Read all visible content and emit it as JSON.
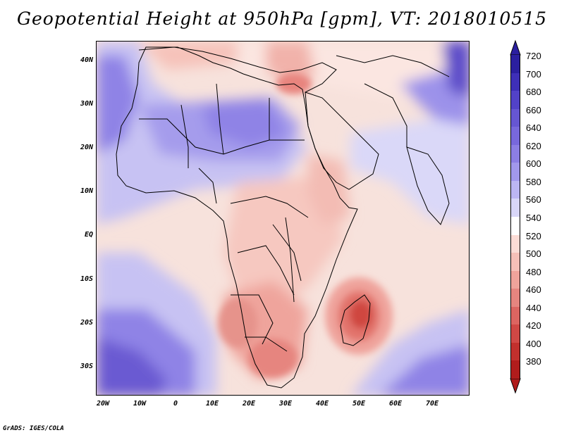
{
  "title": "Geopotential Height at 950hPa [gpm], VT: 2018010515",
  "credit": "GrADS: IGES/COLA",
  "map": {
    "lat_labels": [
      "40N",
      "30N",
      "20N",
      "10N",
      "EQ",
      "10S",
      "20S",
      "30S"
    ],
    "lon_labels": [
      "20W",
      "10W",
      "0",
      "10E",
      "20E",
      "30E",
      "40E",
      "50E",
      "60E",
      "70E"
    ]
  },
  "colorbar": {
    "labels": [
      "720",
      "700",
      "680",
      "660",
      "640",
      "620",
      "600",
      "580",
      "560",
      "540",
      "520",
      "500",
      "480",
      "460",
      "440",
      "420",
      "400",
      "380"
    ],
    "colors": [
      "#2b1fa0",
      "#3e2fb8",
      "#5242c8",
      "#6656d2",
      "#7868dc",
      "#8c7ee4",
      "#a298ec",
      "#bcb6f2",
      "#d8d6f8",
      "#ffffff",
      "#fcdcd6",
      "#f6c0b8",
      "#efa39b",
      "#e6857f",
      "#dc6561",
      "#d04845",
      "#c2302d",
      "#b01c1c"
    ]
  }
}
